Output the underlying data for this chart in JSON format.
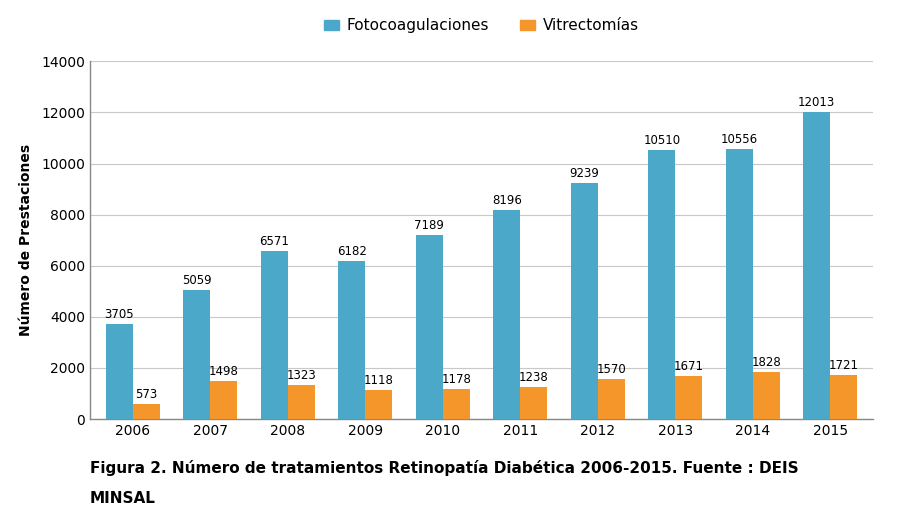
{
  "years": [
    "2006",
    "2007",
    "2008",
    "2009",
    "2010",
    "2011",
    "2012",
    "2013",
    "2014",
    "2015"
  ],
  "fotocoagulaciones": [
    3705,
    5059,
    6571,
    6182,
    7189,
    8196,
    9239,
    10510,
    10556,
    12013
  ],
  "vitrectomias": [
    573,
    1498,
    1323,
    1118,
    1178,
    1238,
    1570,
    1671,
    1828,
    1721
  ],
  "color_foto": "#4BA8C8",
  "color_vitr": "#F4962A",
  "ylabel": "Número de Prestaciones",
  "ylim": [
    0,
    14000
  ],
  "yticks": [
    0,
    2000,
    4000,
    6000,
    8000,
    10000,
    12000,
    14000
  ],
  "legend_foto": "Fotocoagulaciones",
  "legend_vitr": "Vitrectomías",
  "caption_line1": "Figura 2. Número de tratamientos Retinopatía Diabética 2006-2015. Fuente : DEIS",
  "caption_line2": "MINSAL",
  "background_color": "#ffffff",
  "bar_width": 0.35,
  "label_fontsize": 8.5,
  "axis_fontsize": 10,
  "legend_fontsize": 11,
  "caption_fontsize": 11,
  "grid_color": "#c8c8c8",
  "spine_color": "#888888"
}
